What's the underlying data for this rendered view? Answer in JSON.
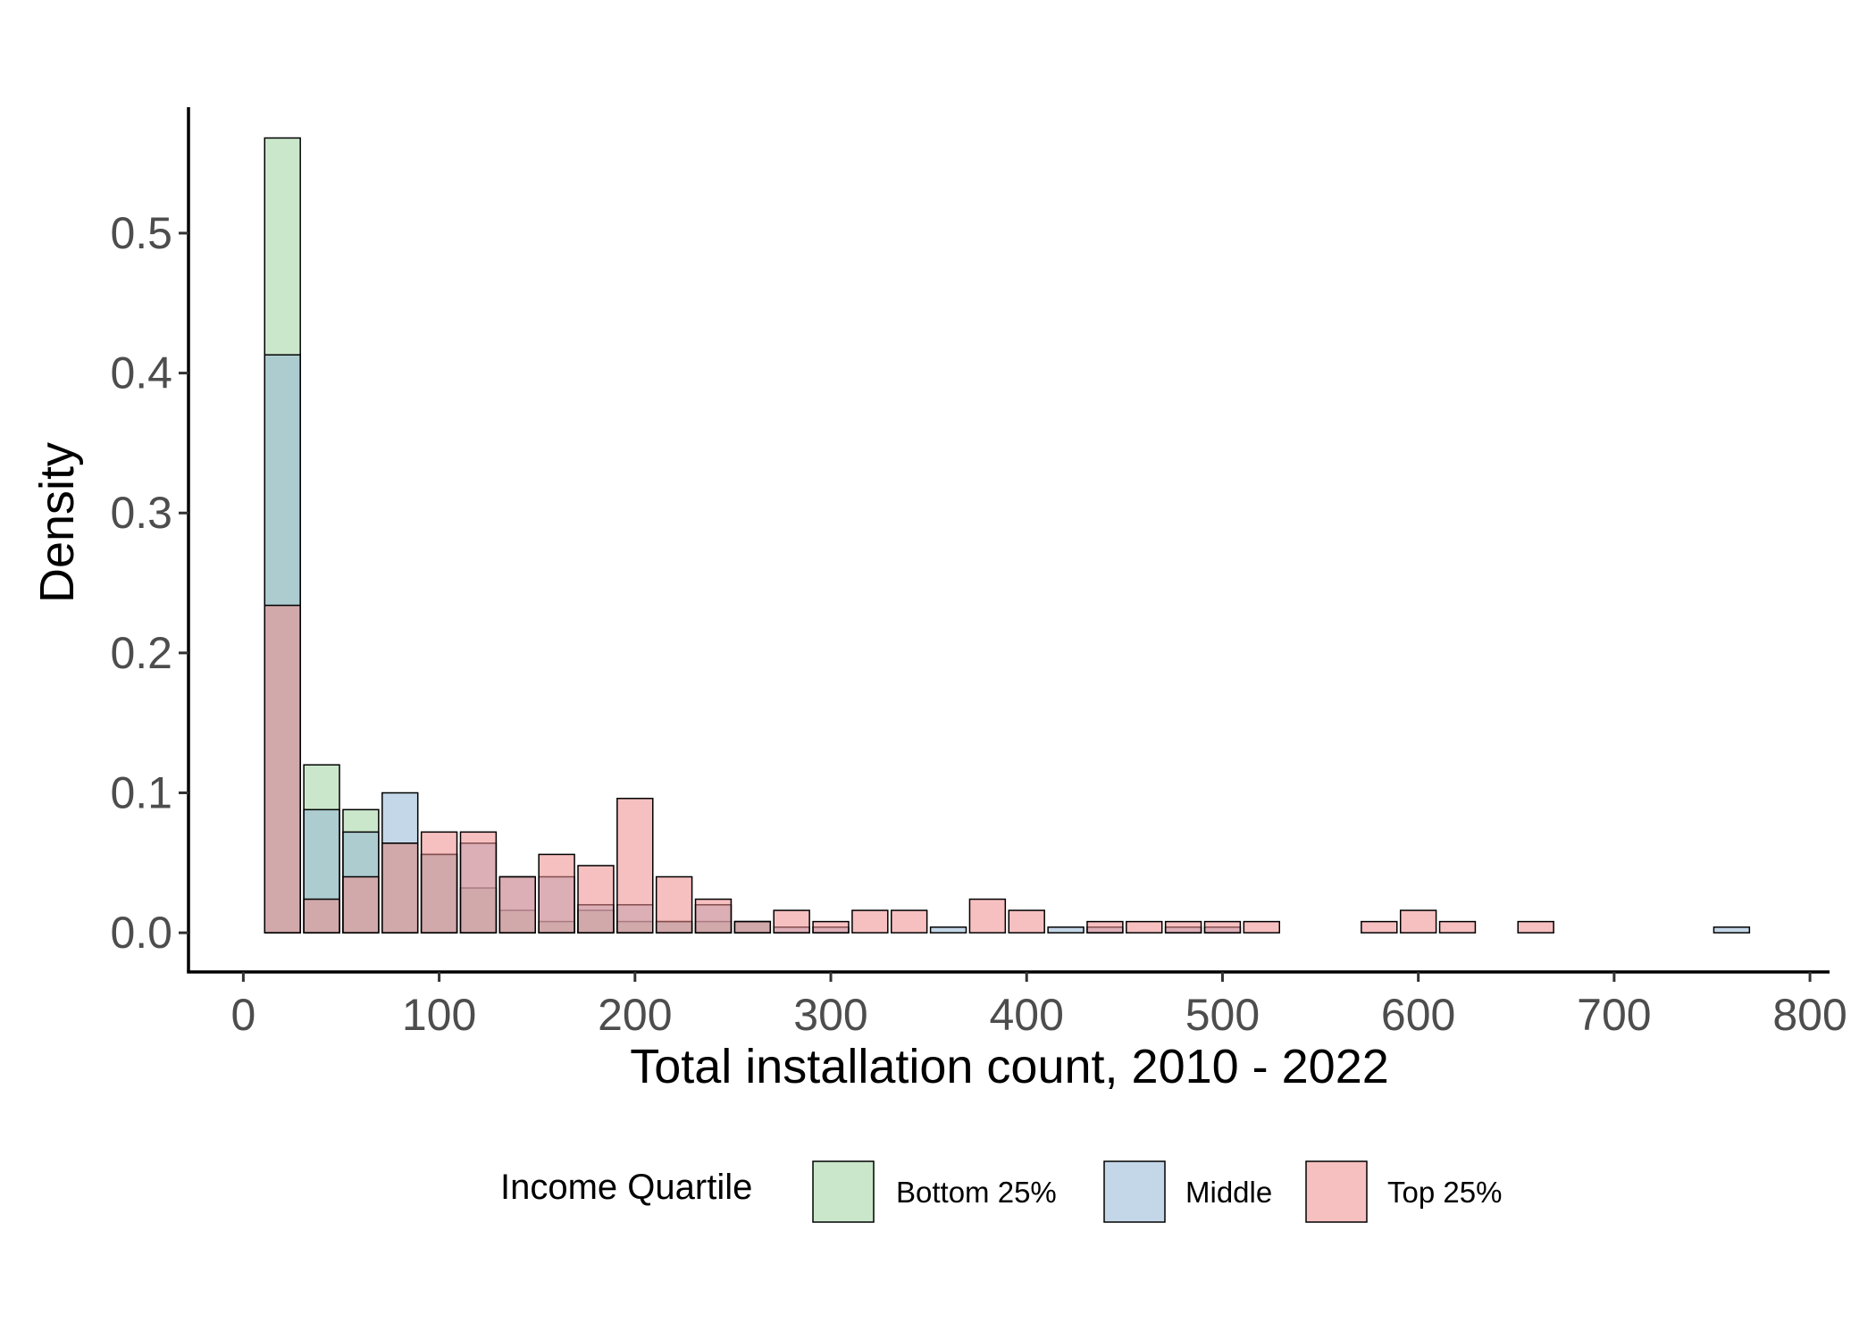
{
  "chart_data": {
    "type": "bar",
    "subtype": "overlapping-histogram",
    "xlabel": "Total installation count, 2010 - 2022",
    "ylabel": "Density",
    "xlim": [
      -28,
      810
    ],
    "ylim": [
      -0.028,
      0.59
    ],
    "x_ticks": [
      0,
      100,
      200,
      300,
      400,
      500,
      600,
      700,
      800
    ],
    "x_tick_labels": [
      "0",
      "100",
      "200",
      "300",
      "400",
      "500",
      "600",
      "700",
      "800"
    ],
    "y_ticks": [
      0.0,
      0.1,
      0.2,
      0.3,
      0.4,
      0.5
    ],
    "y_tick_labels": [
      "0.0",
      "0.1",
      "0.2",
      "0.3",
      "0.4",
      "0.5"
    ],
    "bin_width": 20,
    "bin_centers": [
      20,
      40,
      60,
      80,
      100,
      120,
      140,
      160,
      180,
      200,
      220,
      240,
      260,
      280,
      300,
      320,
      340,
      360,
      380,
      400,
      420,
      440,
      460,
      480,
      500,
      520,
      580,
      600,
      620,
      660,
      760
    ],
    "series": [
      {
        "name": "Bottom 25%",
        "color": "#9fd4a1",
        "values": [
          0.568,
          0.12,
          0.088,
          0.064,
          0.056,
          0.032,
          0.016,
          0.008,
          0.016,
          0.008,
          0.008,
          0.008,
          0.008,
          0.0,
          0.0,
          0.0,
          0.0,
          0.0,
          0.0,
          0.0,
          0.0,
          0.0,
          0.0,
          0.0,
          0.0,
          0.0,
          0.0,
          0.0,
          0.0,
          0.0,
          0.0
        ]
      },
      {
        "name": "Middle",
        "color": "#93b7d6",
        "values": [
          0.413,
          0.088,
          0.072,
          0.1,
          0.056,
          0.064,
          0.04,
          0.04,
          0.02,
          0.02,
          0.008,
          0.02,
          0.008,
          0.004,
          0.004,
          0.0,
          0.0,
          0.004,
          0.0,
          0.0,
          0.004,
          0.004,
          0.0,
          0.004,
          0.004,
          0.0,
          0.0,
          0.0,
          0.0,
          0.0,
          0.004
        ]
      },
      {
        "name": "Top 25%",
        "color": "#f08c8c",
        "values": [
          0.234,
          0.024,
          0.04,
          0.064,
          0.072,
          0.072,
          0.04,
          0.056,
          0.048,
          0.096,
          0.04,
          0.024,
          0.008,
          0.016,
          0.008,
          0.016,
          0.016,
          0.0,
          0.024,
          0.016,
          0.0,
          0.008,
          0.008,
          0.008,
          0.008,
          0.008,
          0.008,
          0.016,
          0.008,
          0.008,
          0.0
        ]
      }
    ],
    "legend": {
      "title": "Income Quartile",
      "placement": "bottom",
      "items": [
        "Bottom 25%",
        "Middle",
        "Top 25%"
      ]
    },
    "grid": false
  }
}
